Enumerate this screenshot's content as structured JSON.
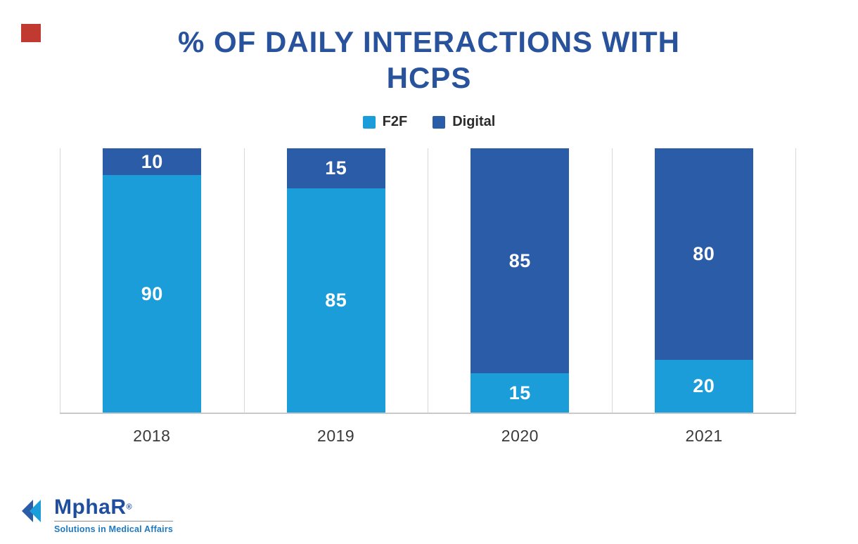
{
  "accent_colors": {
    "title_blue": "#28539c",
    "f2f_blue": "#1b9dd9",
    "digital_blue": "#2b5ca8",
    "corner_red": "#c13a32",
    "axis_gray": "#c9c9c9"
  },
  "title_lines": [
    "% OF DAILY INTERACTIONS WITH",
    "HCPS"
  ],
  "chart_data": {
    "type": "bar",
    "stacked": true,
    "title": "% OF DAILY INTERACTIONS WITH HCPS",
    "categories": [
      "2018",
      "2019",
      "2020",
      "2021"
    ],
    "series": [
      {
        "name": "F2F",
        "color": "#1b9dd9",
        "values": [
          90,
          85,
          15,
          20
        ]
      },
      {
        "name": "Digital",
        "color": "#2b5ca8",
        "values": [
          10,
          15,
          85,
          80
        ]
      }
    ],
    "xlabel": "",
    "ylabel": "",
    "ylim": [
      0,
      100
    ],
    "value_labels": "inside-white",
    "grid": "vertical-separators",
    "legend_position": "top"
  },
  "logo": {
    "name": "MphaR",
    "reg": "®",
    "tagline": "Solutions in Medical Affairs"
  }
}
